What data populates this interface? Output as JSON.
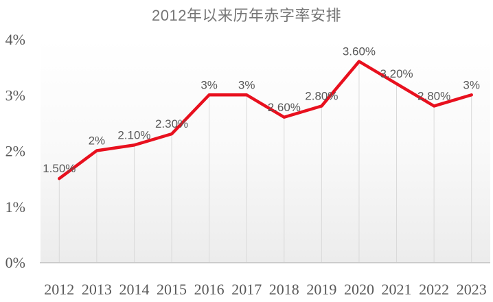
{
  "chart_data": {
    "type": "line",
    "title": "2012年以来历年赤字率安排",
    "categories": [
      "2012",
      "2013",
      "2014",
      "2015",
      "2016",
      "2017",
      "2018",
      "2019",
      "2020",
      "2021",
      "2022",
      "2023"
    ],
    "values": [
      1.5,
      2,
      2.1,
      2.3,
      3,
      3,
      2.6,
      2.8,
      3.6,
      3.2,
      2.8,
      3
    ],
    "point_labels": [
      "1.50%",
      "2%",
      "2.10%",
      "2.30%",
      "3%",
      "3%",
      "2.60%",
      "2.80%",
      "3.60%",
      "3.20%",
      "2.80%",
      "3%"
    ],
    "xlabel": "",
    "ylabel": "",
    "y_ticks": [
      "0%",
      "1%",
      "2%",
      "3%",
      "4%"
    ],
    "ylim": [
      0,
      4
    ],
    "grid": "vertical-droplines",
    "legend": "none",
    "colors": {
      "line": "#e8101e",
      "data_label": "#595959",
      "axis_label": "#595959",
      "title": "#767676",
      "dropline": "#d9d9d9",
      "baseline": "#c9c9c9",
      "plot_fill_top": "#ffffff",
      "plot_fill_mid": "#f9f9f9",
      "plot_fill_bottom": "#ececec"
    }
  }
}
